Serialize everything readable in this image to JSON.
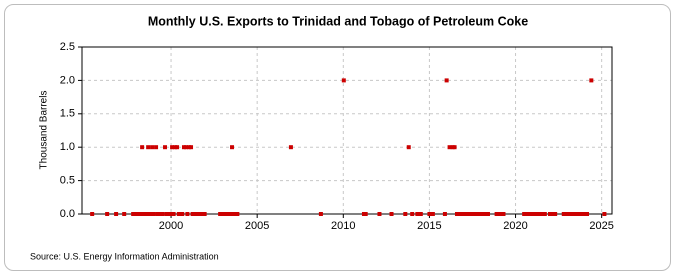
{
  "chart_data": {
    "type": "scatter",
    "title": "Monthly U.S. Exports to Trinidad and Tobago of Petroleum Coke",
    "y_label": "Thousand Barrels",
    "source": "Source: U.S. Energy Information Administration",
    "color": "#cc0000",
    "grid": true,
    "xlim": [
      1994.83,
      2025.6
    ],
    "ylim": [
      0,
      2.5
    ],
    "xticks": [
      2000,
      2005,
      2010,
      2015,
      2020,
      2025
    ],
    "yticks": [
      {
        "value": 0,
        "label": "0.0"
      },
      {
        "value": 0.5,
        "label": "0.5"
      },
      {
        "value": 1,
        "label": "1.0"
      },
      {
        "value": 1.5,
        "label": "1.5"
      },
      {
        "value": 2,
        "label": "2.0"
      },
      {
        "value": 2.5,
        "label": "2.5"
      }
    ],
    "x": [
      1995.42,
      1996.29,
      1996.81,
      1997.28,
      1997.8,
      1997.9,
      1998.0,
      1998.1,
      1998.2,
      1998.32,
      1998.42,
      1998.5,
      1998.58,
      1998.67,
      1998.78,
      1998.9,
      1999.0,
      1999.13,
      1999.22,
      1999.32,
      1999.42,
      1999.52,
      1999.65,
      1999.75,
      1999.85,
      1999.95,
      2000.06,
      2000.15,
      2000.23,
      2000.35,
      2000.45,
      2000.55,
      2000.65,
      2000.75,
      2000.87,
      2000.95,
      2001.04,
      2001.16,
      2001.25,
      2001.35,
      2001.45,
      2001.55,
      2001.65,
      2001.75,
      2001.85,
      2001.95,
      2002.85,
      2002.95,
      2003.05,
      2003.15,
      2003.25,
      2003.35,
      2003.45,
      2003.54,
      2003.65,
      2003.75,
      2003.85,
      2006.96,
      2008.7,
      2010.03,
      2011.2,
      2011.3,
      2012.1,
      2012.8,
      2013.6,
      2013.8,
      2014.0,
      2014.3,
      2014.5,
      2015.0,
      2015.2,
      2015.9,
      2016.0,
      2016.17,
      2016.35,
      2016.46,
      2016.6,
      2016.75,
      2016.9,
      2017.05,
      2017.2,
      2017.35,
      2017.5,
      2017.65,
      2017.8,
      2017.95,
      2018.1,
      2018.25,
      2018.4,
      2018.9,
      2019.1,
      2019.3,
      2020.5,
      2020.65,
      2020.8,
      2021.0,
      2021.15,
      2021.3,
      2021.5,
      2021.7,
      2022.0,
      2022.15,
      2022.3,
      2022.8,
      2022.95,
      2023.1,
      2023.25,
      2023.4,
      2023.55,
      2023.7,
      2023.85,
      2024.0,
      2024.15,
      2024.4,
      2025.16
    ],
    "values": [
      0,
      0,
      0,
      0,
      0,
      0,
      0,
      0,
      0,
      1,
      0,
      0,
      0,
      1,
      0,
      1,
      0,
      1,
      0,
      0,
      0,
      0,
      1,
      0,
      0,
      0,
      1,
      0,
      1,
      1,
      0,
      0,
      0,
      1,
      1,
      0,
      1,
      1,
      0,
      0,
      0,
      0,
      0,
      0,
      0,
      0,
      0,
      0,
      0,
      0,
      0,
      0,
      0,
      1,
      0,
      0,
      0,
      1,
      0,
      2,
      0,
      0,
      0,
      0,
      0,
      1,
      0,
      0,
      0,
      0,
      0,
      0,
      2,
      1,
      1,
      1,
      0,
      0,
      0,
      0,
      0,
      0,
      0,
      0,
      0,
      0,
      0,
      0,
      0,
      0,
      0,
      0,
      0,
      0,
      0,
      0,
      0,
      0,
      0,
      0,
      0,
      0,
      0,
      0,
      0,
      0,
      0,
      0,
      0,
      0,
      0,
      0,
      0,
      2,
      0
    ]
  }
}
